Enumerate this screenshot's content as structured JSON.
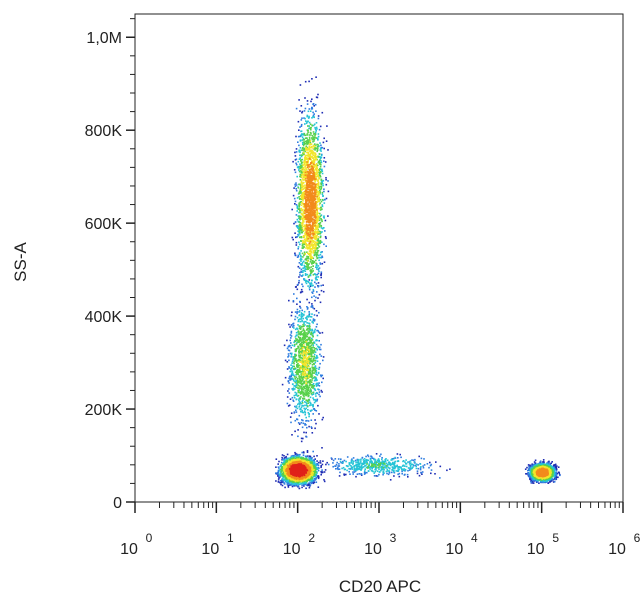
{
  "chart_data": {
    "type": "scatter",
    "plot_style": "density dot plot (flow cytometry)",
    "x_scale": "log",
    "xlabel": "CD20 APC",
    "ylabel": "SS-A",
    "xlim": [
      1,
      1000000
    ],
    "ylim": [
      0,
      1050000
    ],
    "x_ticks": [
      {
        "value": 1,
        "base": "10",
        "exp": "0"
      },
      {
        "value": 10,
        "base": "10",
        "exp": "1"
      },
      {
        "value": 100,
        "base": "10",
        "exp": "2"
      },
      {
        "value": 1000,
        "base": "10",
        "exp": "3"
      },
      {
        "value": 10000,
        "base": "10",
        "exp": "4"
      },
      {
        "value": 100000,
        "base": "10",
        "exp": "5"
      },
      {
        "value": 1000000,
        "base": "10",
        "exp": "6"
      }
    ],
    "y_ticks": [
      {
        "value": 0,
        "label": "0"
      },
      {
        "value": 200000,
        "label": "200K"
      },
      {
        "value": 400000,
        "label": "400K"
      },
      {
        "value": 600000,
        "label": "600K"
      },
      {
        "value": 800000,
        "label": "800K"
      },
      {
        "value": 1000000,
        "label": "1,0M"
      }
    ],
    "populations": [
      {
        "x_center": 140,
        "y_center": 650000,
        "x_spread_decades": 0.16,
        "y_spread": 180000,
        "density": "high"
      },
      {
        "x_center": 120,
        "y_center": 300000,
        "x_spread_decades": 0.18,
        "y_spread": 120000,
        "density": "medium"
      },
      {
        "x_center": 100,
        "y_center": 70000,
        "x_spread_decades": 0.22,
        "y_spread": 28000,
        "density": "very high"
      },
      {
        "x_center": 1000,
        "y_center": 80000,
        "x_spread_decades": 0.6,
        "y_spread": 20000,
        "density": "low"
      },
      {
        "x_center": 100000,
        "y_center": 65000,
        "x_spread_decades": 0.15,
        "y_spread": 18000,
        "density": "high"
      }
    ],
    "colors": [
      "#1f2db4",
      "#2f7de0",
      "#26c4d6",
      "#58d14a",
      "#f2e52a",
      "#f28a1c",
      "#e0211a"
    ],
    "grid": false
  }
}
